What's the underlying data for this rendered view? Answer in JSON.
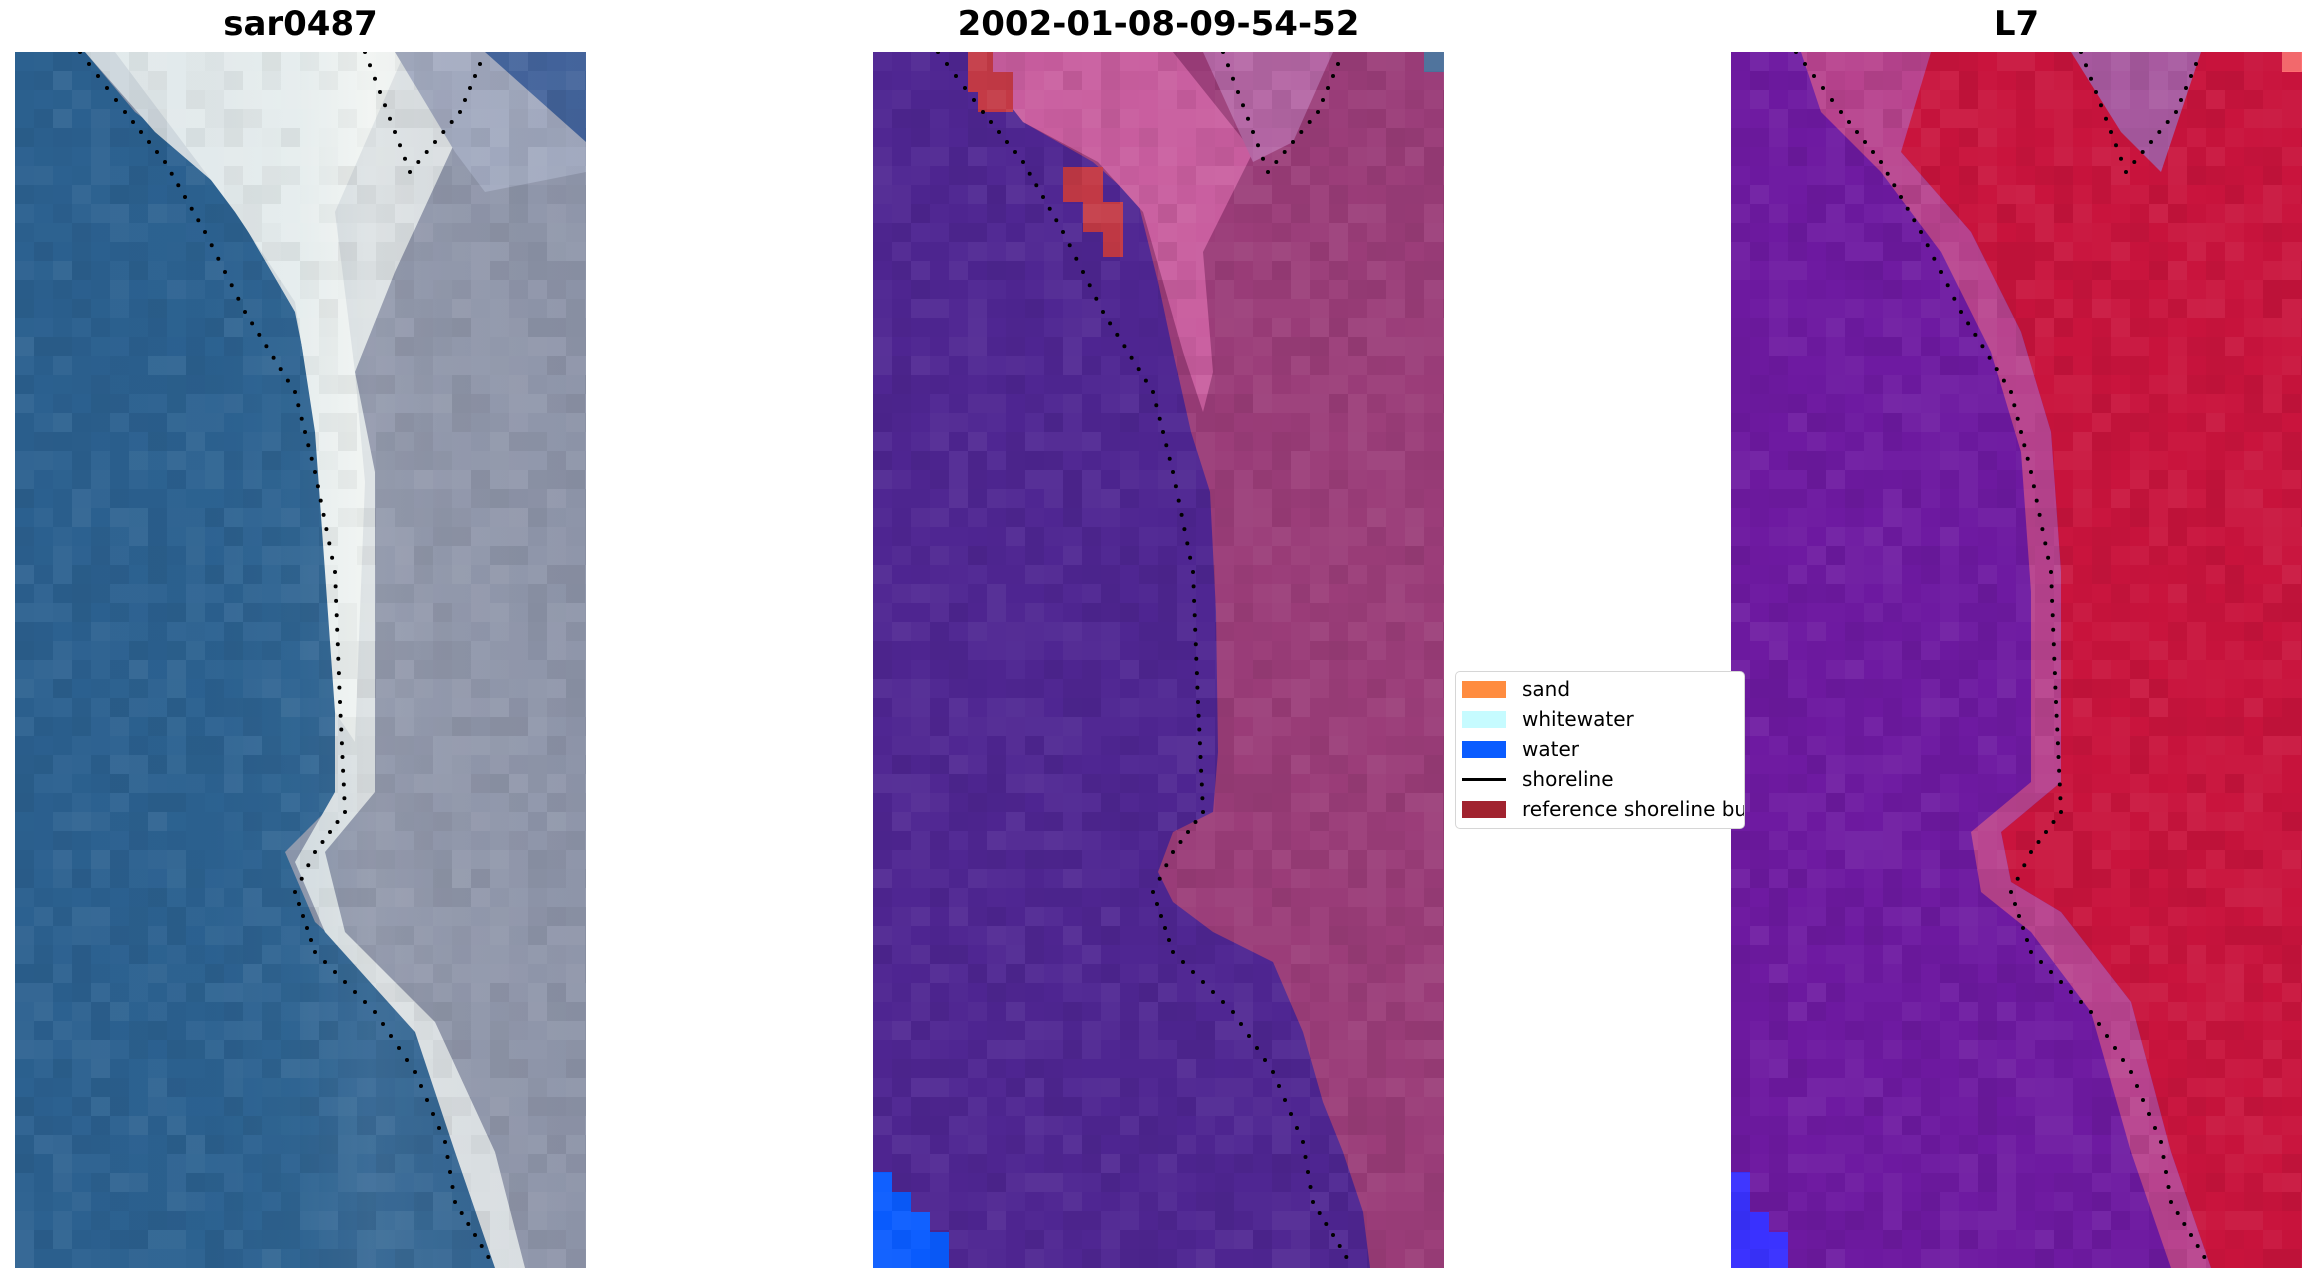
{
  "panels": [
    {
      "title": "sar0487",
      "kind": "rgb"
    },
    {
      "title": "2002-01-08-09-54-52",
      "kind": "classified"
    },
    {
      "title": "L7",
      "kind": "index"
    }
  ],
  "legend": {
    "items": [
      {
        "label": "sand",
        "color": "#ff8c3f",
        "type": "patch"
      },
      {
        "label": "whitewater",
        "color": "#c6fbff",
        "type": "patch"
      },
      {
        "label": "water",
        "color": "#0a5cff",
        "type": "patch"
      },
      {
        "label": "shoreline",
        "color": "#000000",
        "type": "line"
      },
      {
        "label": "reference shoreline buffer",
        "color": "#a1232f",
        "type": "patch"
      }
    ]
  },
  "colors": {
    "ocean": "#2c6190",
    "whitewater": "#f4f7f6",
    "land_rgb": "#8e95a9",
    "classified_water": "#4f2692",
    "classified_land": "#9b3d79",
    "classified_sand": "#c95e9f",
    "reference_buffer": "#c43a46",
    "index_water": "#6e1aa1",
    "index_land": "#c9143d",
    "index_transition": "#b8438e",
    "index_deep": "#3a32ff"
  }
}
